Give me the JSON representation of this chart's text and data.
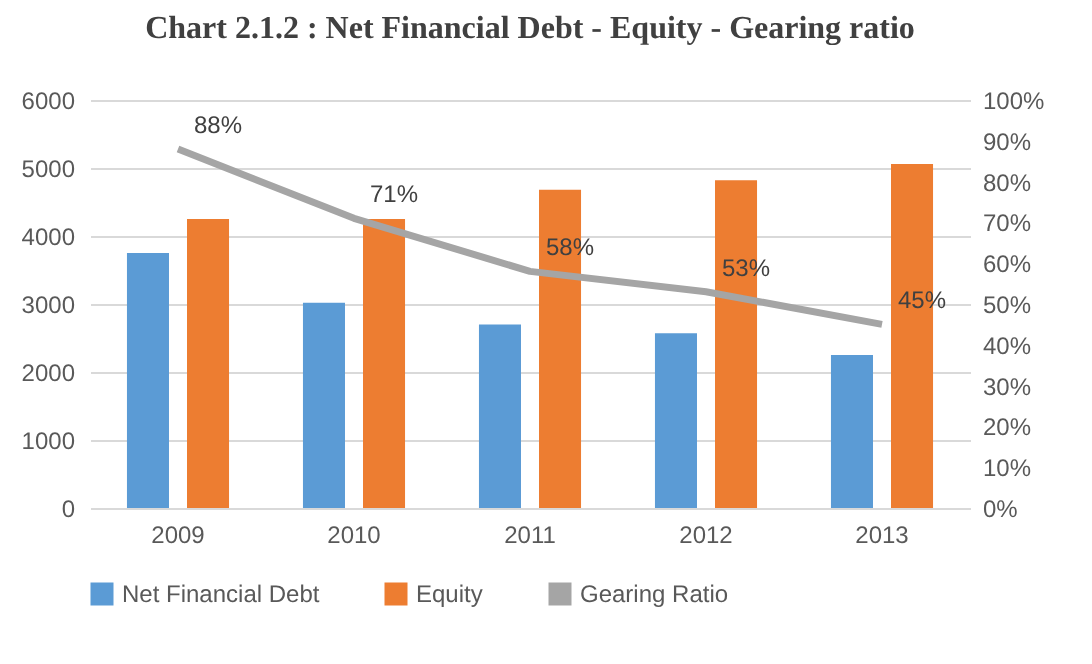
{
  "chart_data": {
    "type": "bar",
    "title": "Chart 2.1.2 : Net Financial Debt - Equity - Gearing ratio",
    "categories": [
      "2009",
      "2010",
      "2011",
      "2012",
      "2013"
    ],
    "series": [
      {
        "name": "Net Financial Debt",
        "color": "#5b9bd5",
        "values": [
          3750,
          3020,
          2700,
          2570,
          2250
        ]
      },
      {
        "name": "Equity",
        "color": "#ed7d31",
        "values": [
          4250,
          4250,
          4680,
          4820,
          5060
        ]
      },
      {
        "name": "Gearing Ratio",
        "type": "line",
        "axis": "y2",
        "color": "#a5a5a5",
        "values": [
          88,
          71,
          58,
          53,
          45
        ],
        "value_labels": [
          "88%",
          "71%",
          "58%",
          "53%",
          "45%"
        ]
      }
    ],
    "ylim": [
      0,
      6000
    ],
    "yticks": [
      0,
      1000,
      2000,
      3000,
      4000,
      5000,
      6000
    ],
    "y2lim": [
      0,
      100
    ],
    "y2ticks": [
      {
        "value": 0,
        "label": "0%"
      },
      {
        "value": 10,
        "label": "10%"
      },
      {
        "value": 20,
        "label": "20%"
      },
      {
        "value": 30,
        "label": "30%"
      },
      {
        "value": 40,
        "label": "40%"
      },
      {
        "value": 50,
        "label": "50%"
      },
      {
        "value": 60,
        "label": "60%"
      },
      {
        "value": 70,
        "label": "70%"
      },
      {
        "value": 80,
        "label": "80%"
      },
      {
        "value": 90,
        "label": "90%"
      },
      {
        "value": 100,
        "label": "100%"
      }
    ],
    "grid": "y",
    "legend": "bottom"
  }
}
